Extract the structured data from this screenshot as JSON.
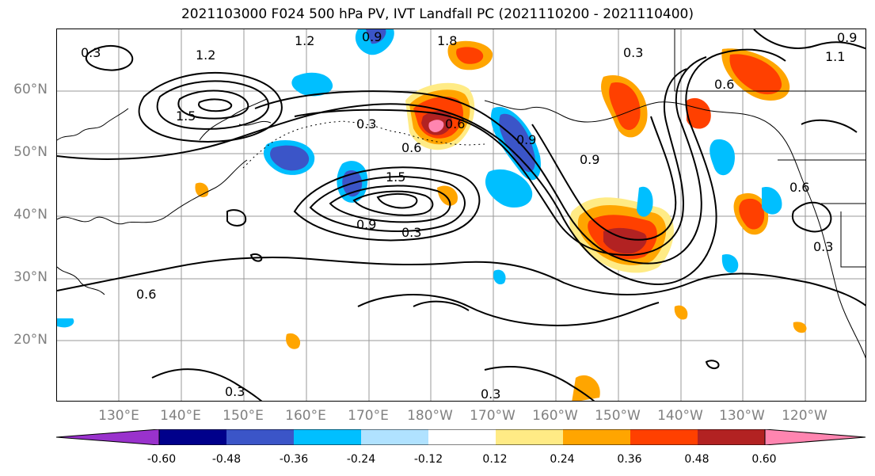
{
  "title": "2021103000 F024 500 hPa PV, IVT Landfall PC (2021110200 - 2021110400)",
  "lat_labels": [
    "60°N",
    "50°N",
    "40°N",
    "30°N",
    "20°N"
  ],
  "lon_labels": [
    "130°E",
    "140°E",
    "150°E",
    "160°E",
    "170°E",
    "180°W",
    "170°W",
    "160°W",
    "150°W",
    "140°W",
    "130°W",
    "120°W"
  ],
  "contour_labels": [
    "0.3",
    "1.2",
    "0.9",
    "1.8",
    "1.2",
    "1.5",
    "0.3",
    "0.6",
    "0.6",
    "0.9",
    "1.5",
    "0.9",
    "0.3",
    "0.6",
    "0.3",
    "0.3",
    "0.3",
    "0.6",
    "0.9",
    "0.6",
    "0.3",
    "1.1",
    "0.9"
  ],
  "colorbar": {
    "ticks": [
      "-0.60",
      "-0.48",
      "-0.36",
      "-0.24",
      "-0.12",
      "0.12",
      "0.24",
      "0.36",
      "0.48",
      "0.60"
    ],
    "colors": [
      "#9932CC",
      "#00008B",
      "#3B55C8",
      "#00BFFF",
      "#B0E2FF",
      "#FFFFFF",
      "#FFEB85",
      "#FFA500",
      "#FF4000",
      "#B22222",
      "#FF85B0"
    ]
  }
}
